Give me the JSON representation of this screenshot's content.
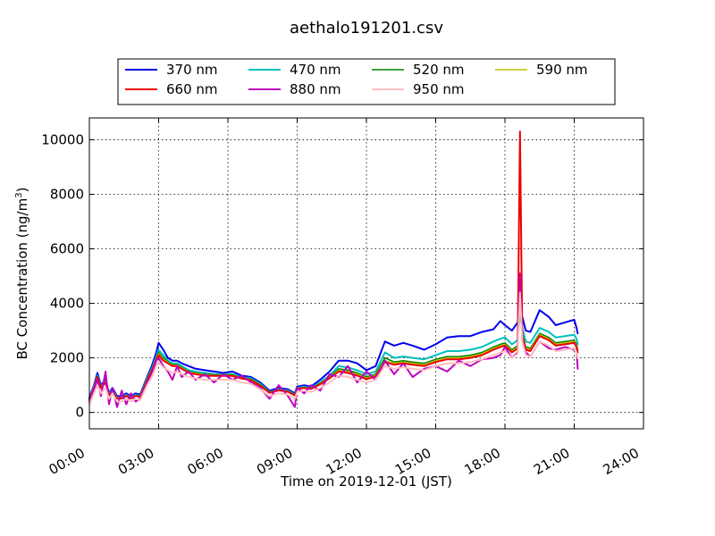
{
  "chart_data": {
    "type": "line",
    "title": "aethalo191201.csv",
    "xlabel": "Time on 2019-12-01 (JST)",
    "ylabel_main": "BC Concentration (ng/m",
    "ylabel_sup": "3",
    "ylabel_end": ")",
    "xlim": [
      0,
      24
    ],
    "ylim": [
      -600,
      10800
    ],
    "x_ticks": [
      0,
      3,
      6,
      9,
      12,
      15,
      18,
      21,
      24
    ],
    "x_tick_labels": [
      "00:00",
      "03:00",
      "06:00",
      "09:00",
      "12:00",
      "15:00",
      "18:00",
      "21:00",
      "24:00"
    ],
    "y_ticks": [
      0,
      2000,
      4000,
      6000,
      8000,
      10000
    ],
    "y_tick_labels": [
      "0",
      "2000",
      "4000",
      "6000",
      "8000",
      "10000"
    ],
    "grid": true,
    "legend_position": "top",
    "x": [
      0.0,
      0.2,
      0.35,
      0.5,
      0.7,
      0.85,
      1.0,
      1.2,
      1.4,
      1.6,
      1.8,
      2.0,
      2.2,
      2.5,
      2.7,
      2.9,
      3.0,
      3.2,
      3.4,
      3.6,
      3.8,
      4.0,
      4.3,
      4.6,
      5.0,
      5.4,
      5.8,
      6.2,
      6.6,
      7.0,
      7.4,
      7.8,
      8.2,
      8.6,
      8.9,
      9.0,
      9.3,
      9.6,
      10.0,
      10.4,
      10.8,
      11.2,
      11.6,
      12.0,
      12.4,
      12.8,
      13.2,
      13.6,
      14.0,
      14.5,
      15.0,
      15.5,
      16.0,
      16.5,
      17.0,
      17.5,
      17.8,
      18.0,
      18.3,
      18.55,
      18.65,
      18.75,
      18.9,
      19.1,
      19.5,
      19.9,
      20.2,
      20.6,
      21.0,
      21.1,
      21.15
    ],
    "series": [
      {
        "name": "370 nm",
        "color": "#0000ee",
        "width": 2,
        "values": [
          550,
          1000,
          1450,
          1000,
          1200,
          700,
          900,
          600,
          600,
          700,
          600,
          700,
          650,
          1300,
          1700,
          2200,
          2550,
          2300,
          2000,
          1900,
          1900,
          1800,
          1700,
          1600,
          1550,
          1500,
          1450,
          1500,
          1350,
          1300,
          1100,
          800,
          900,
          850,
          700,
          950,
          1000,
          950,
          1200,
          1500,
          1900,
          1900,
          1800,
          1550,
          1700,
          2600,
          2450,
          2550,
          2450,
          2300,
          2500,
          2750,
          2800,
          2800,
          2950,
          3050,
          3350,
          3200,
          3000,
          3300,
          3700,
          3500,
          3000,
          2950,
          3750,
          3500,
          3200,
          3300,
          3400,
          3100,
          2900
        ]
      },
      {
        "name": "470 nm",
        "color": "#00bfbf",
        "width": 2,
        "values": [
          500,
          950,
          1350,
          950,
          1150,
          650,
          850,
          550,
          550,
          650,
          550,
          650,
          600,
          1250,
          1600,
          2050,
          2300,
          2100,
          1900,
          1800,
          1800,
          1700,
          1550,
          1500,
          1450,
          1400,
          1400,
          1400,
          1300,
          1250,
          1050,
          750,
          850,
          800,
          650,
          900,
          950,
          900,
          1100,
          1350,
          1700,
          1650,
          1550,
          1400,
          1500,
          2200,
          2000,
          2050,
          2000,
          1950,
          2100,
          2250,
          2250,
          2300,
          2400,
          2600,
          2700,
          2750,
          2500,
          2650,
          3600,
          3100,
          2600,
          2550,
          3100,
          2950,
          2750,
          2800,
          2850,
          2700,
          2500
        ]
      },
      {
        "name": "520 nm",
        "color": "#008000",
        "width": 1.5,
        "values": [
          480,
          920,
          1320,
          920,
          1120,
          630,
          830,
          530,
          530,
          630,
          530,
          630,
          580,
          1220,
          1560,
          2000,
          2200,
          2000,
          1850,
          1750,
          1750,
          1650,
          1500,
          1450,
          1400,
          1380,
          1380,
          1380,
          1280,
          1220,
          1020,
          740,
          830,
          780,
          640,
          880,
          920,
          880,
          1070,
          1300,
          1600,
          1550,
          1450,
          1300,
          1400,
          2000,
          1850,
          1900,
          1850,
          1800,
          1950,
          2050,
          2050,
          2100,
          2200,
          2400,
          2500,
          2550,
          2300,
          2450,
          4500,
          2900,
          2400,
          2350,
          2900,
          2750,
          2550,
          2600,
          2650,
          2500,
          2300
        ]
      },
      {
        "name": "590 nm",
        "color": "#bfbf00",
        "width": 1.5,
        "values": [
          470,
          910,
          1310,
          910,
          1110,
          620,
          820,
          520,
          520,
          620,
          520,
          620,
          570,
          1200,
          1540,
          1980,
          2150,
          1950,
          1830,
          1730,
          1730,
          1630,
          1480,
          1430,
          1380,
          1360,
          1360,
          1360,
          1260,
          1200,
          1000,
          730,
          820,
          770,
          630,
          870,
          910,
          870,
          1050,
          1280,
          1550,
          1500,
          1400,
          1260,
          1360,
          1900,
          1800,
          1850,
          1800,
          1750,
          1900,
          2000,
          2000,
          2050,
          2150,
          2350,
          2450,
          2500,
          2250,
          2400,
          5000,
          2850,
          2350,
          2300,
          2850,
          2700,
          2500,
          2550,
          2600,
          2450,
          2250
        ]
      },
      {
        "name": "660 nm",
        "color": "#ee0000",
        "width": 2,
        "values": [
          460,
          900,
          1300,
          900,
          1100,
          610,
          810,
          510,
          510,
          610,
          510,
          610,
          560,
          1180,
          1520,
          1950,
          2100,
          1900,
          1800,
          1700,
          1700,
          1600,
          1450,
          1400,
          1350,
          1340,
          1340,
          1340,
          1240,
          1180,
          980,
          720,
          810,
          760,
          620,
          860,
          900,
          860,
          1030,
          1250,
          1500,
          1450,
          1350,
          1220,
          1320,
          1850,
          1750,
          1800,
          1750,
          1700,
          1850,
          1950,
          1950,
          2000,
          2100,
          2300,
          2400,
          2450,
          2200,
          2350,
          10300,
          2800,
          2300,
          2250,
          2800,
          2650,
          2450,
          2500,
          2550,
          2400,
          2200
        ]
      },
      {
        "name": "880 nm",
        "color": "#bf00bf",
        "width": 2,
        "values": [
          400,
          850,
          1200,
          600,
          1500,
          300,
          900,
          200,
          800,
          300,
          700,
          400,
          500,
          1100,
          1400,
          1900,
          2000,
          1700,
          1500,
          1200,
          1700,
          1300,
          1500,
          1200,
          1400,
          1100,
          1400,
          1200,
          1350,
          1100,
          900,
          500,
          1000,
          600,
          200,
          900,
          700,
          1000,
          800,
          1400,
          1300,
          1700,
          1100,
          1500,
          1200,
          1900,
          1400,
          1800,
          1300,
          1600,
          1700,
          1500,
          1900,
          1700,
          1950,
          2000,
          2100,
          2400,
          2000,
          2200,
          5100,
          2600,
          2200,
          2050,
          2600,
          2350,
          2300,
          2400,
          2300,
          2250,
          1600
        ]
      },
      {
        "name": "950 nm",
        "color": "#ffbfbf",
        "width": 2,
        "values": [
          300,
          700,
          1000,
          700,
          900,
          500,
          700,
          400,
          400,
          500,
          400,
          500,
          450,
          1000,
          1300,
          1700,
          1850,
          1650,
          1550,
          1450,
          1500,
          1400,
          1300,
          1250,
          1200,
          1200,
          1200,
          1200,
          1100,
          1050,
          850,
          600,
          700,
          650,
          500,
          750,
          800,
          750,
          900,
          1100,
          1350,
          1300,
          1200,
          1100,
          1200,
          1700,
          1600,
          1650,
          1600,
          1550,
          1700,
          1800,
          1800,
          1850,
          1950,
          2100,
          2200,
          2250,
          2000,
          2150,
          4400,
          2600,
          2100,
          2050,
          2600,
          2450,
          2250,
          2300,
          2350,
          2200,
          2000
        ]
      }
    ]
  }
}
